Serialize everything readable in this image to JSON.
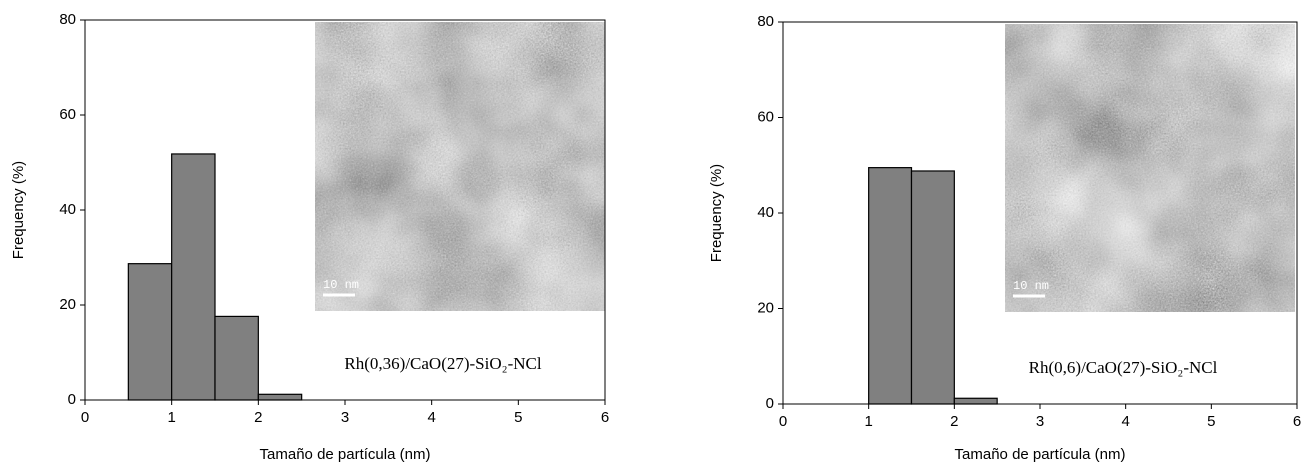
{
  "chart_data": [
    {
      "type": "histogram",
      "bins": [
        0.5,
        1,
        1.5,
        2,
        2.5
      ],
      "values": [
        28.7,
        51.8,
        17.6,
        1.2
      ],
      "color": "#808080",
      "xlim": [
        0,
        6
      ],
      "ylim": [
        0,
        80
      ],
      "xticks": [
        0,
        1,
        2,
        3,
        4,
        5,
        6
      ],
      "yticks": [
        0,
        20,
        40,
        60,
        80
      ],
      "x_label": "Tamaño de partícula (nm)",
      "y_label": "Frequency (%)",
      "annotation": "Rh(0,36)/CaO(27)-SiO₂-NCl",
      "inset_label": "10 nm"
    },
    {
      "type": "histogram",
      "bins": [
        1,
        1.5,
        2,
        2.5
      ],
      "values": [
        49.5,
        48.8,
        1.2
      ],
      "color": "#808080",
      "xlim": [
        0,
        6
      ],
      "ylim": [
        0,
        80
      ],
      "xticks": [
        0,
        1,
        2,
        3,
        4,
        5,
        6
      ],
      "yticks": [
        0,
        20,
        40,
        60,
        80
      ],
      "x_label": "Tamaño de partícula (nm)",
      "y_label": "Frequency (%)",
      "annotation": "Rh(0,6)/CaO(27)-SiO₂-NCl",
      "inset_label": "10 nm"
    }
  ]
}
